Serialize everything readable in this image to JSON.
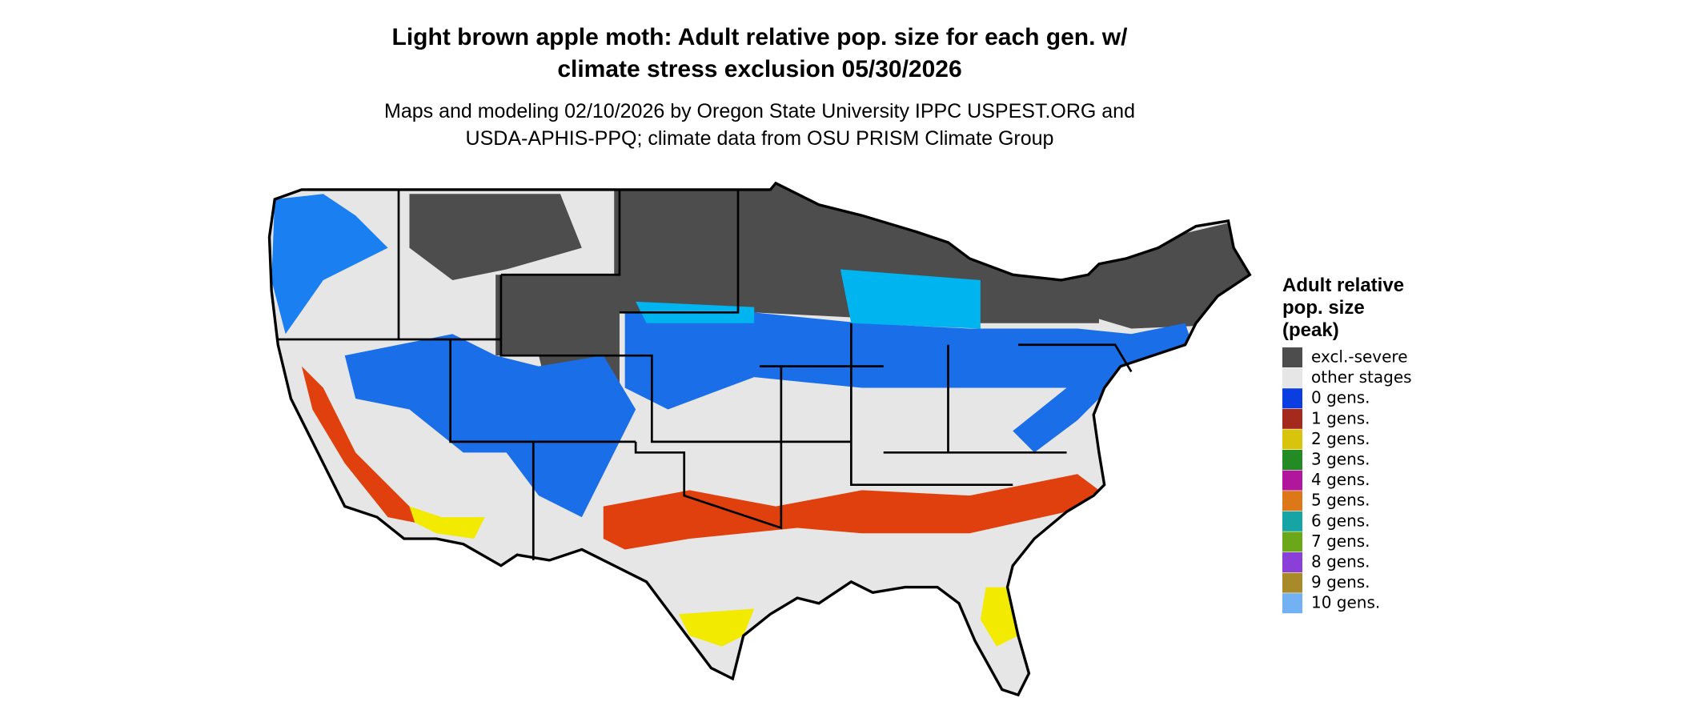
{
  "header": {
    "title_lines": [
      "Light brown apple moth: Adult relative pop. size for each gen. w/",
      "climate stress exclusion 05/30/2026"
    ],
    "subtitle_lines": [
      "Maps and modeling 02/10/2026 by Oregon State University IPPC USPEST.ORG and",
      "USDA-APHIS-PPQ; climate data from OSU PRISM Climate Group"
    ]
  },
  "legend": {
    "title_lines": [
      "Adult relative",
      "pop. size",
      "(peak)"
    ],
    "items": [
      {
        "label": "excl.-severe",
        "color": "#4d4d4d"
      },
      {
        "label": "other stages",
        "color": "#e6e6e6"
      },
      {
        "label": "0 gens.",
        "color": "#0a3ee0"
      },
      {
        "label": "1 gens.",
        "color": "#a52a1e"
      },
      {
        "label": "2 gens.",
        "color": "#d8c40c"
      },
      {
        "label": "3 gens.",
        "color": "#238b23"
      },
      {
        "label": "4 gens.",
        "color": "#b0179d"
      },
      {
        "label": "5 gens.",
        "color": "#dc7818"
      },
      {
        "label": "6 gens.",
        "color": "#16a4a4"
      },
      {
        "label": "7 gens.",
        "color": "#6aa81a"
      },
      {
        "label": "8 gens.",
        "color": "#8a3fd8"
      },
      {
        "label": "9 gens.",
        "color": "#a88a2a"
      },
      {
        "label": "10 gens.",
        "color": "#72b2f2"
      }
    ]
  }
}
